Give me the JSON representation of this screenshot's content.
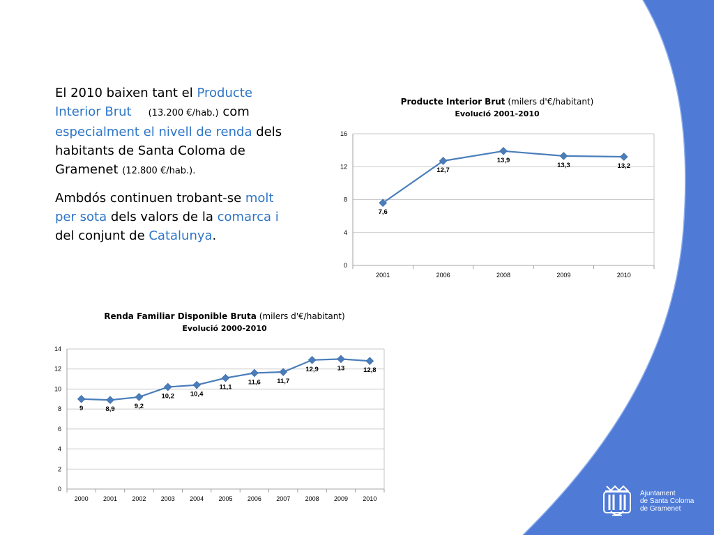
{
  "colors": {
    "accent_blue": "#4f7bd6",
    "highlight_text": "#2e75c6",
    "series": "#4a7ebb"
  },
  "text": {
    "p1": [
      {
        "t": "El 2010 baixen tant el ",
        "hl": false
      },
      {
        "t": "Producte Interior Brut",
        "hl": true
      },
      {
        "t": "(13.200 €/hab.)",
        "hl": false,
        "small": true,
        "gap": true
      },
      {
        "t": " com ",
        "hl": false
      },
      {
        "t": "especialment el nivell de renda",
        "hl": true
      },
      {
        "t": " dels habitants de Santa Coloma de Gramenet ",
        "hl": false
      },
      {
        "t": "(12.800 €/hab.).",
        "hl": false,
        "small": true
      }
    ],
    "p2": [
      {
        "t": "Ambdós continuen trobant-se ",
        "hl": false
      },
      {
        "t": "molt per sota",
        "hl": true
      },
      {
        "t": " dels valors de la ",
        "hl": false
      },
      {
        "t": "comarca i",
        "hl": true
      },
      {
        "t": " del conjunt de ",
        "hl": false
      },
      {
        "t": "Catalunya",
        "hl": true
      },
      {
        "t": ".",
        "hl": false
      }
    ]
  },
  "chart_data": [
    {
      "type": "line",
      "title": "Producte Interior Brut",
      "title_unit": "(milers d'€/habitant)",
      "subtitle": "Evolució 2001-2010",
      "categories": [
        "2001",
        "2006",
        "2008",
        "2009",
        "2010"
      ],
      "values": [
        7.6,
        12.7,
        13.9,
        13.3,
        13.2
      ],
      "data_labels": [
        "7,6",
        "12,7",
        "13,9",
        "13,3",
        "13,2"
      ],
      "yticks": [
        "0",
        "4",
        "8",
        "12",
        "16"
      ],
      "ylim": [
        0,
        16
      ],
      "grid": true,
      "legend": "none"
    },
    {
      "type": "line",
      "title": "Renda Familiar Disponible Bruta",
      "title_unit": "(milers d'€/habitant)",
      "subtitle": "Evolució 2000-2010",
      "categories": [
        "2000",
        "2001",
        "2002",
        "2003",
        "2004",
        "2005",
        "2006",
        "2007",
        "2008",
        "2009",
        "2010"
      ],
      "values": [
        9,
        8.9,
        9.2,
        10.2,
        10.4,
        11.1,
        11.6,
        11.7,
        12.9,
        13,
        12.8
      ],
      "data_labels": [
        "9",
        "8,9",
        "9,2",
        "10,2",
        "10,4",
        "11,1",
        "11,6",
        "11,7",
        "12,9",
        "13",
        "12,8"
      ],
      "yticks": [
        "0",
        "2",
        "4",
        "6",
        "8",
        "10",
        "12",
        "14"
      ],
      "ylim": [
        0,
        14
      ],
      "grid": true,
      "legend": "none"
    }
  ],
  "logo": {
    "icon": "city-council-shield-icon",
    "lines": [
      "Ajuntament",
      "de Santa Coloma",
      "de Gramenet"
    ]
  }
}
